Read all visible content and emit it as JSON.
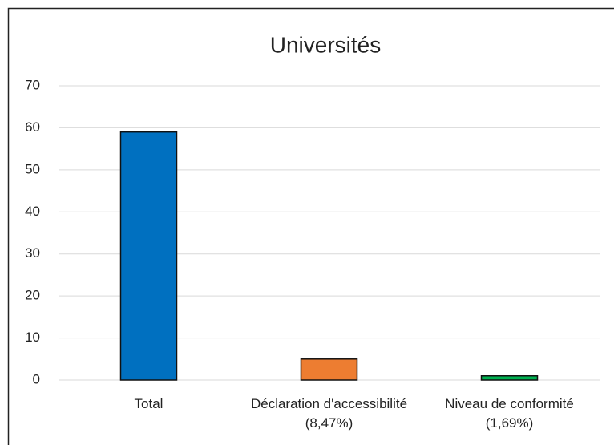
{
  "chart_data": {
    "type": "bar",
    "title": "Universités",
    "categories": [
      "Total",
      "Déclaration d'accessibilité (8,47%)",
      "Niveau de conformité (1,69%)"
    ],
    "values": [
      59,
      5,
      1
    ],
    "colors": [
      "#0070c0",
      "#ed7d31",
      "#00b050"
    ],
    "ylim": [
      0,
      70
    ],
    "yticks": [
      0,
      10,
      20,
      30,
      40,
      50,
      60,
      70
    ],
    "grid": true
  }
}
